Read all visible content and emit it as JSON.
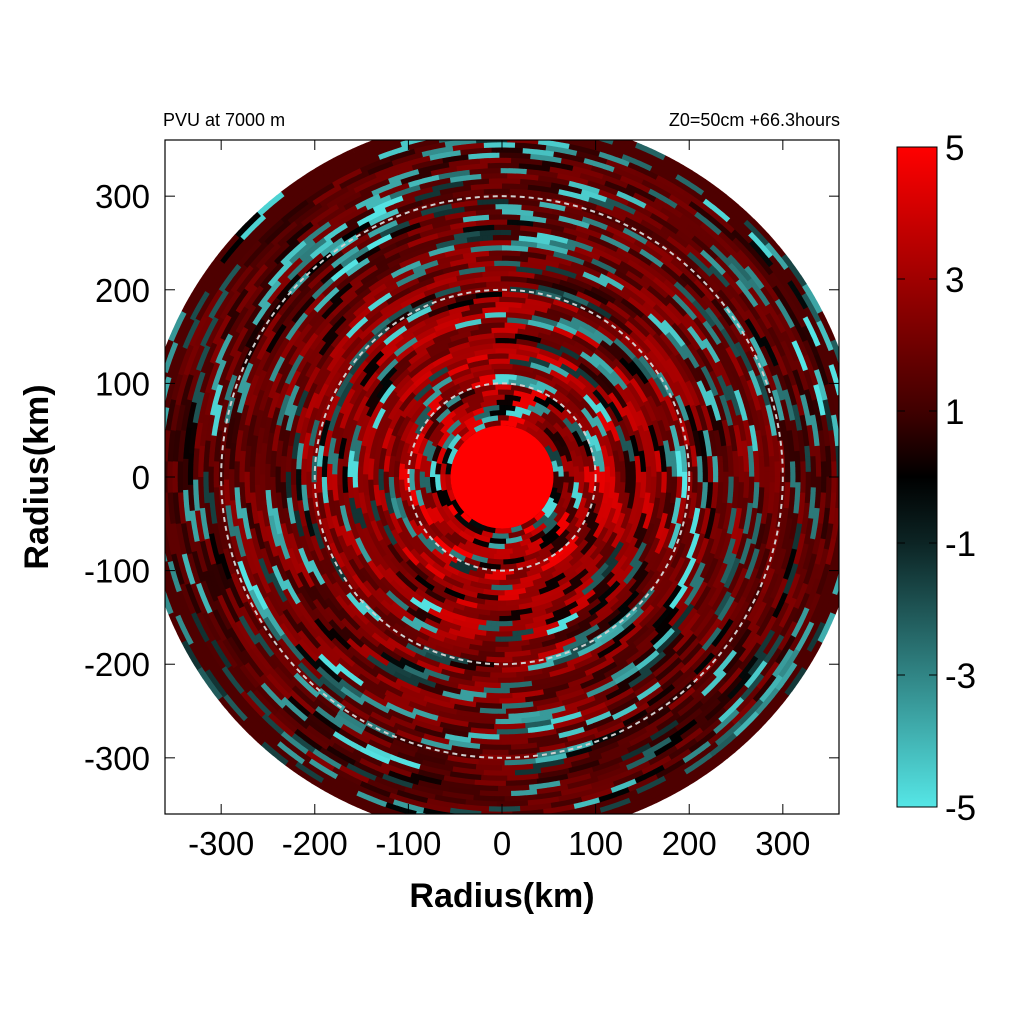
{
  "figure": {
    "title_left": "PVU at  7000 m",
    "title_right": "Z0=50cm  +66.3hours"
  },
  "chart_data": {
    "type": "heatmap",
    "title": "PVU at  7000 m",
    "subtitle": "Z0=50cm  +66.3hours",
    "xlabel": "Radius(km)",
    "ylabel": "Radius(km)",
    "xlim": [
      -360,
      360
    ],
    "ylim": [
      -360,
      360
    ],
    "x_ticks": [
      -300,
      -200,
      -100,
      0,
      100,
      200,
      300
    ],
    "y_ticks": [
      300,
      200,
      100,
      0,
      -100,
      -200,
      -300
    ],
    "reference_circles_km": [
      100,
      200,
      300
    ],
    "colorbar": {
      "range": [
        -5,
        5
      ],
      "ticks": [
        5,
        3,
        1,
        -1,
        -3,
        -5
      ],
      "colors": [
        {
          "value": 5,
          "color": "#ff0000"
        },
        {
          "value": 1,
          "color": "#400000"
        },
        {
          "value": 0,
          "color": "#000000"
        },
        {
          "value": -1,
          "color": "#0c2424"
        },
        {
          "value": -5,
          "color": "#55e6e6"
        }
      ]
    },
    "field_description": {
      "core_radius_km": 55,
      "core_value": 5,
      "domain_radius_km": 380,
      "values_near_domain_edge": 1.3
    }
  }
}
